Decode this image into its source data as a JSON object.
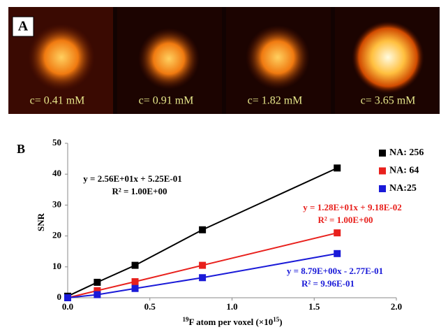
{
  "panel_a": {
    "label": "A",
    "captions": [
      "c= 0.41 mM",
      "c= 0.91 mM",
      "c= 1.82 mM",
      "c= 3.65 mM"
    ]
  },
  "chart_data": {
    "type": "line",
    "panel_label": "B",
    "y_label": "SNR",
    "x_label": {
      "sup1": "19",
      "main": "F atom per voxel (×10",
      "sup2": "15",
      "end": ")"
    },
    "x": [
      0,
      0.18,
      0.41,
      0.82,
      1.64
    ],
    "series": [
      {
        "name": "NA: 256",
        "color": "#000000",
        "values": [
          0.5,
          5,
          10.5,
          22,
          42
        ],
        "trendline_label": [
          "y = 2.56E+01x + 5.25E-01",
          "R² = 1.00E+00"
        ]
      },
      {
        "name": "NA: 64",
        "color": "#e8201c",
        "values": [
          0,
          2.3,
          5.2,
          10.5,
          21
        ],
        "trendline_label": [
          "y = 1.28E+01x + 9.18E-02",
          "R² = 1.00E+00"
        ]
      },
      {
        "name": "NA:25",
        "color": "#1a1ad8",
        "values": [
          0,
          1,
          3,
          6.5,
          14.3
        ],
        "trendline_label": [
          "y = 8.79E+00x - 2.77E-01",
          "R² = 9.96E-01"
        ]
      }
    ],
    "xlim": [
      0,
      2
    ],
    "xticks": [
      {
        "value": 0,
        "label": "0.0"
      },
      0.5,
      {
        "value": 1,
        "label": "1.0"
      },
      1.5,
      {
        "value": 2,
        "label": "2.0"
      }
    ],
    "ylim": [
      0,
      50
    ],
    "yticks": [
      0,
      10,
      20,
      30,
      40,
      50
    ],
    "legend": "top-right"
  }
}
